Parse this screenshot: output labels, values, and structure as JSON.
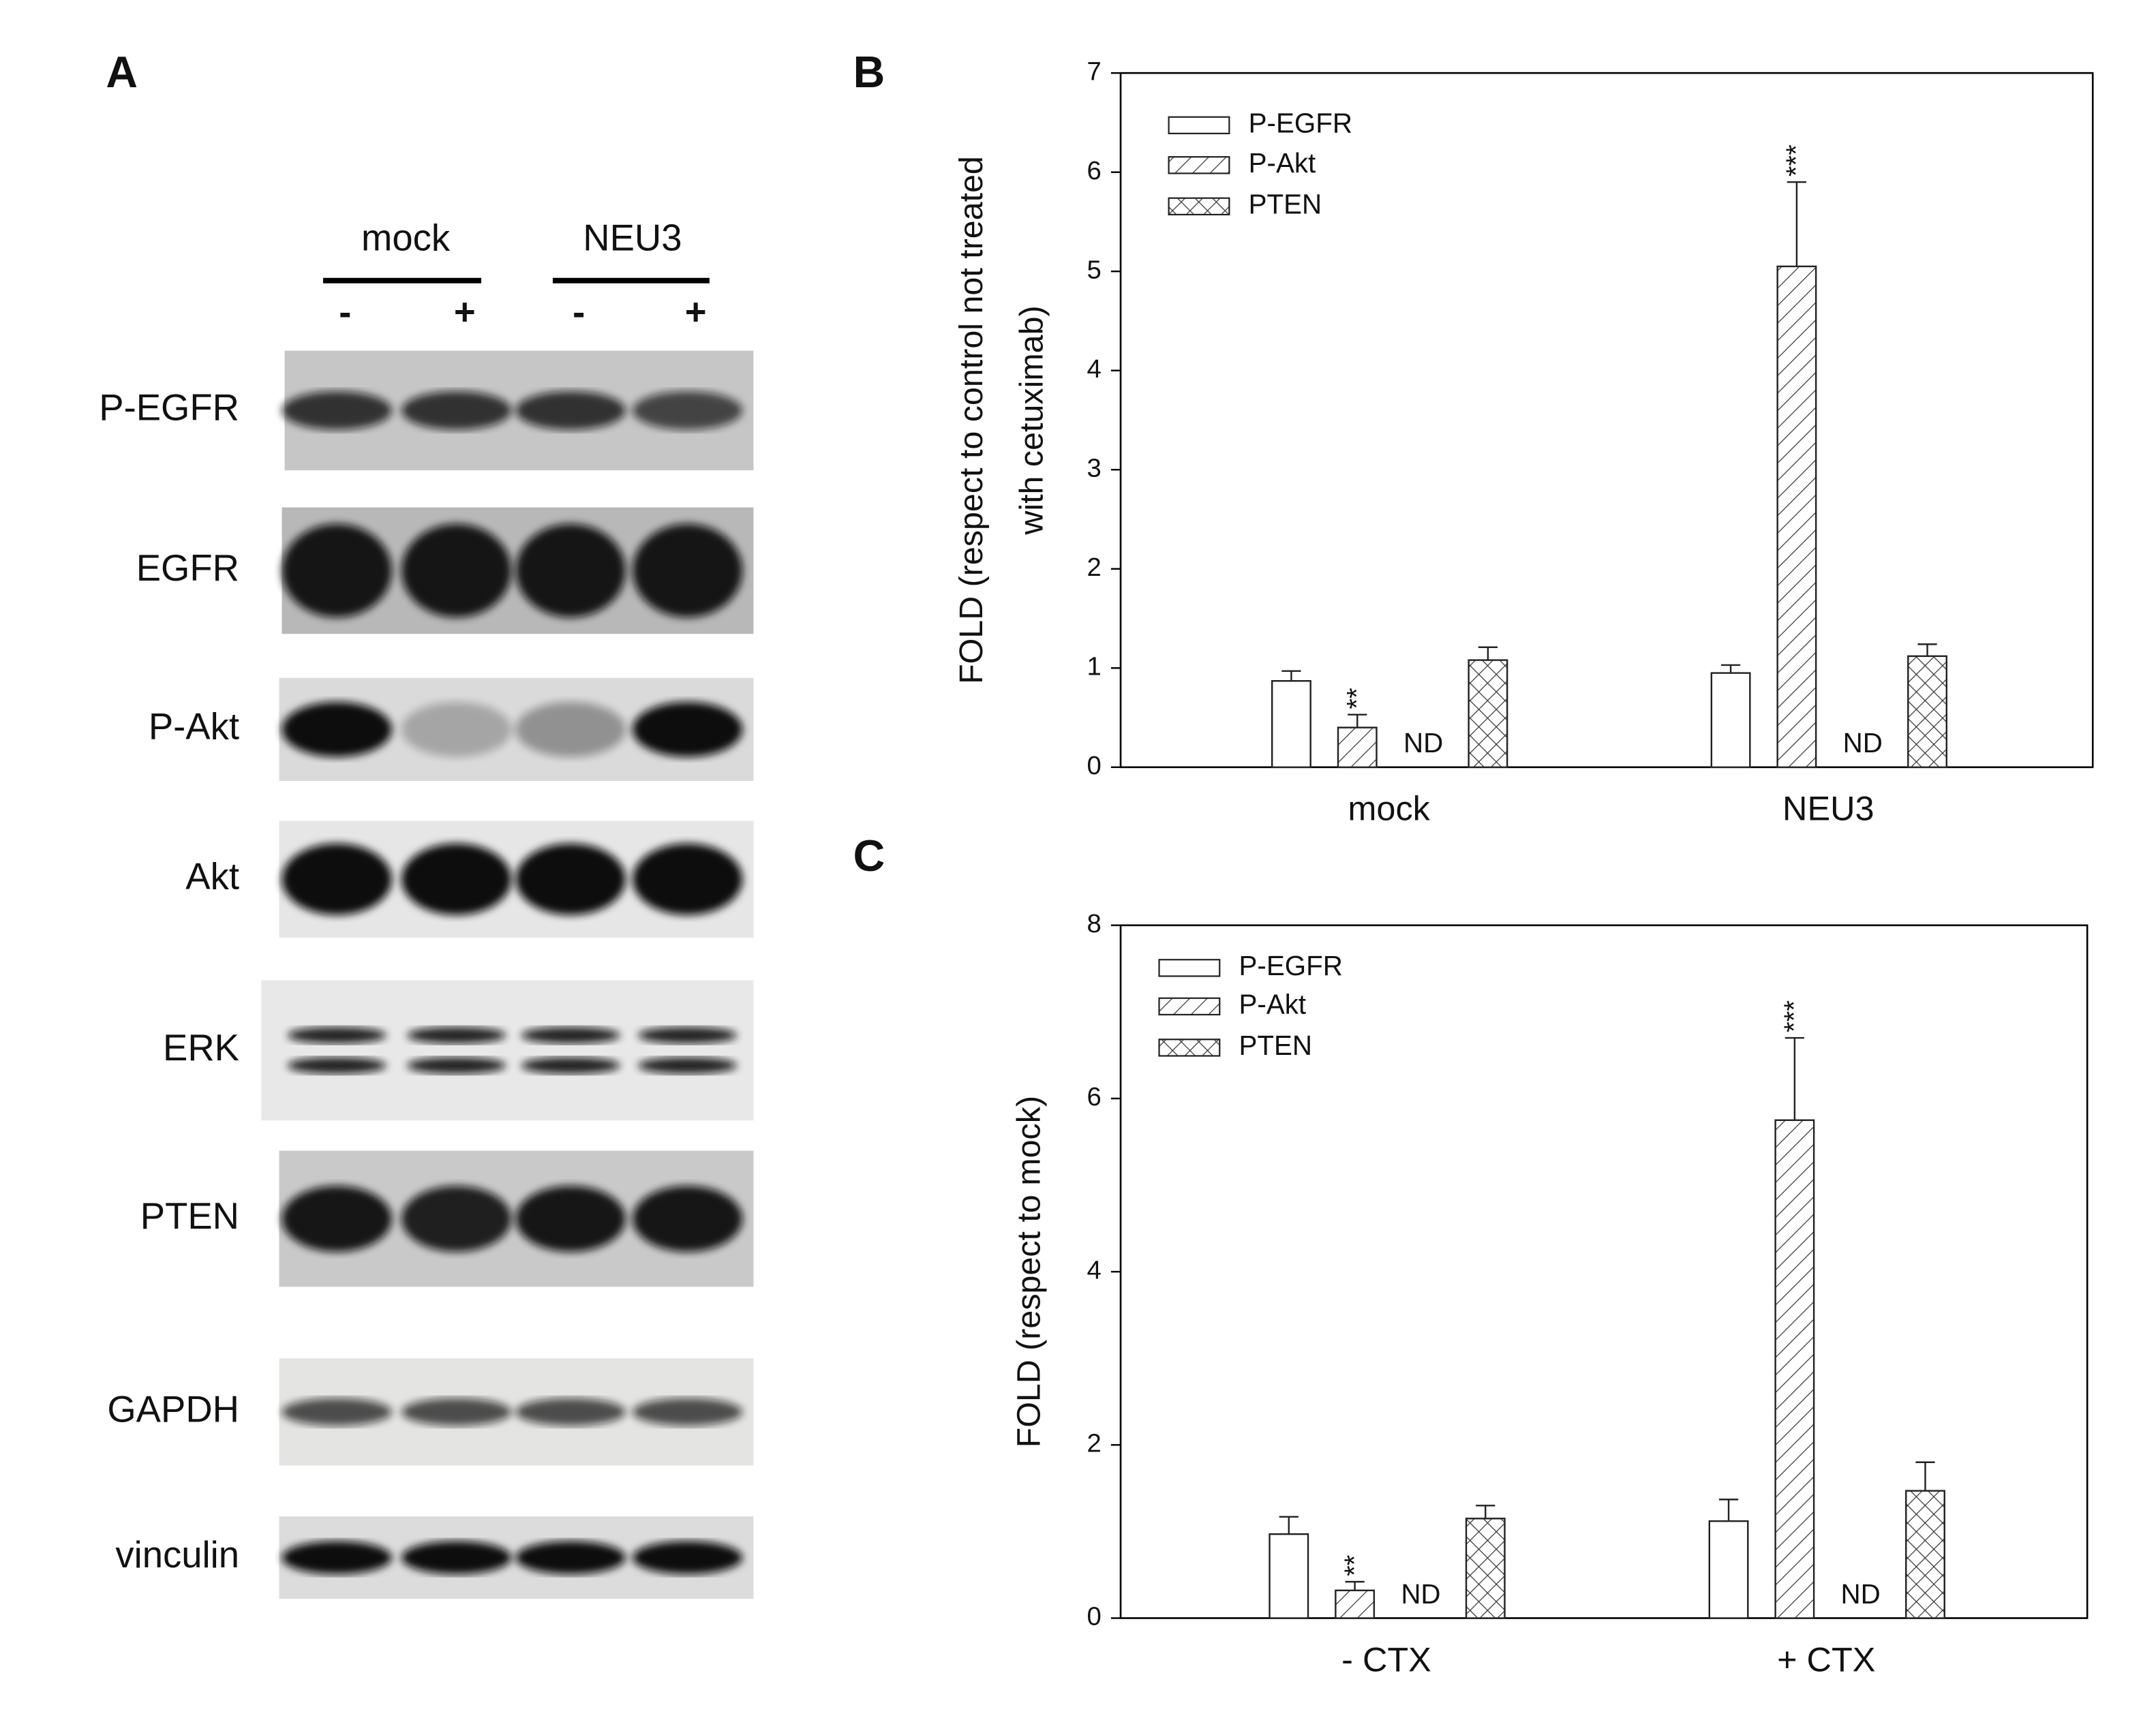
{
  "panel_a": {
    "letter": "A",
    "groups": [
      "mock",
      "NEU3"
    ],
    "treatments": [
      "-",
      "+",
      "-",
      "+"
    ],
    "rows": [
      "P-EGFR",
      "EGFR",
      "P-Akt",
      "Akt",
      "ERK",
      "PTEN",
      "GAPDH",
      "vinculin"
    ]
  },
  "chart_data": [
    {
      "type": "bar",
      "letter": "B",
      "ylabel": [
        "FOLD (respect to control not treated",
        "with cetuximab)"
      ],
      "categories": [
        "mock",
        "NEU3"
      ],
      "ylim": [
        0,
        7
      ],
      "yticks": [
        0,
        1,
        2,
        3,
        4,
        5,
        6,
        7
      ],
      "series": [
        {
          "name": "P-EGFR",
          "color": "#ffffff",
          "pattern": "none",
          "values": [
            0.87,
            0.95
          ],
          "errors": [
            0.1,
            0.08
          ]
        },
        {
          "name": "P-Akt",
          "color": "#ffffff",
          "pattern": "diagonal",
          "values": [
            0.4,
            5.05
          ],
          "errors": [
            0.13,
            0.85
          ],
          "labels": [
            "**",
            "***"
          ]
        },
        {
          "name": "PTEN",
          "color": "#ffffff",
          "pattern": "crosshatch",
          "values": [
            1.08,
            1.12
          ],
          "errors": [
            0.13,
            0.12
          ]
        }
      ],
      "annotations": [
        "ND",
        "ND"
      ]
    },
    {
      "type": "bar",
      "letter": "C",
      "ylabel": [
        "FOLD (respect to mock)"
      ],
      "categories": [
        "- CTX",
        "+ CTX"
      ],
      "ylim": [
        0,
        8
      ],
      "yticks": [
        0,
        2,
        4,
        6,
        8
      ],
      "series": [
        {
          "name": "P-EGFR",
          "color": "#ffffff",
          "pattern": "none",
          "values": [
            0.97,
            1.12
          ],
          "errors": [
            0.2,
            0.25
          ]
        },
        {
          "name": "P-Akt",
          "color": "#ffffff",
          "pattern": "diagonal",
          "values": [
            0.32,
            5.75
          ],
          "errors": [
            0.1,
            0.95
          ],
          "labels": [
            "**",
            "***"
          ]
        },
        {
          "name": "PTEN",
          "color": "#ffffff",
          "pattern": "crosshatch",
          "values": [
            1.15,
            1.47
          ],
          "errors": [
            0.15,
            0.33
          ]
        }
      ],
      "annotations": [
        "ND",
        "ND"
      ]
    }
  ]
}
